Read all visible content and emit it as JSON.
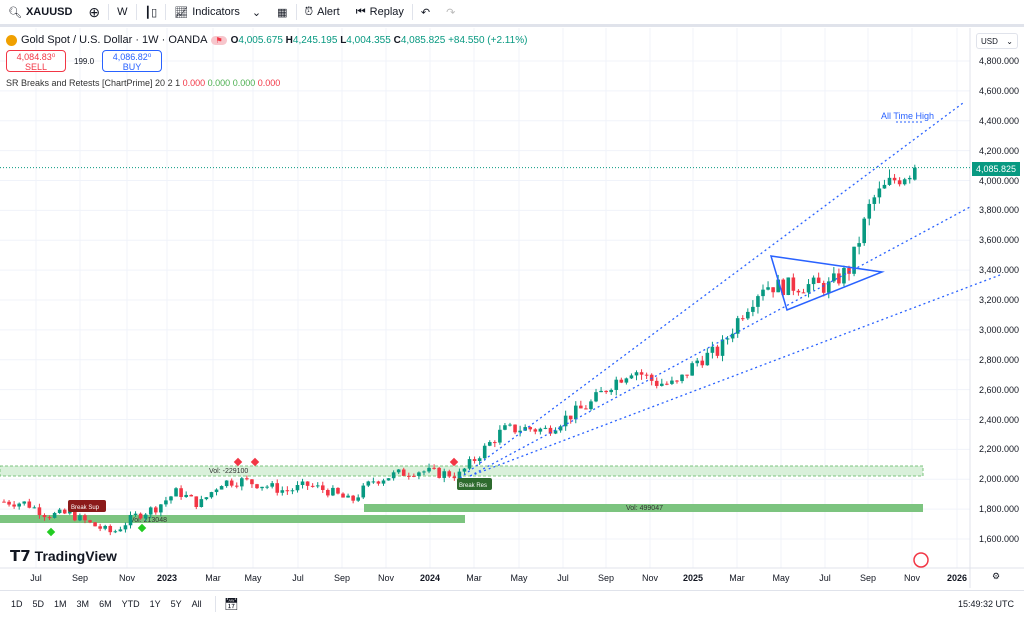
{
  "toolbar": {
    "symbol": "XAUUSD",
    "interval": "W",
    "indicators": "Indicators",
    "alert": "Alert",
    "replay": "Replay"
  },
  "legend": {
    "title": "Gold Spot / U.S. Dollar · 1W · OANDA",
    "o_label": "O",
    "o": "4,005.675",
    "h_label": "H",
    "h": "4,245.195",
    "l_label": "L",
    "l": "4,004.355",
    "c_label": "C",
    "c": "4,085.825",
    "change": "+84.550 (+2.11%)",
    "sell_price": "4,084.83⁰",
    "sell_label": "SELL",
    "spread": "199.0",
    "buy_price": "4,086.82⁰",
    "buy_label": "BUY",
    "indicator": "SR Breaks and Retests [ChartPrime] 20 2 1",
    "ind_vals": [
      "0.000",
      "0.000",
      "0.000",
      "0.000"
    ]
  },
  "currency": "USD",
  "last_price": "4,085.825",
  "annotations": {
    "ath": "All Time High",
    "vol1": "Vol: -229100",
    "vol2": "Vol: 213048",
    "vol3": "Vol: 499047",
    "break_sup": "Break Sup",
    "break_res": "Break Res"
  },
  "logo": "TradingView",
  "ranges": [
    "1D",
    "5D",
    "1M",
    "3M",
    "6M",
    "YTD",
    "1Y",
    "5Y",
    "All"
  ],
  "clock": "15:49:32 UTC",
  "colors": {
    "up": "#089981",
    "down": "#f23645",
    "accent": "#2962ff",
    "zone": "#7cc47f"
  },
  "chart_data": {
    "type": "candlestick",
    "y_ticks": [
      "4,800.000",
      "4,600.000",
      "4,400.000",
      "4,200.000",
      "4,000.000",
      "3,800.000",
      "3,600.000",
      "3,400.000",
      "3,200.000",
      "3,000.000",
      "2,800.000",
      "2,600.000",
      "2,400.000",
      "2,200.000",
      "2,000.000",
      "1,800.000",
      "1,600.000"
    ],
    "x_ticks": [
      "Jul",
      "Sep",
      "Nov",
      "2023",
      "Mar",
      "May",
      "Jul",
      "Sep",
      "Nov",
      "2024",
      "Mar",
      "May",
      "Jul",
      "Sep",
      "Nov",
      "2025",
      "Mar",
      "May",
      "Jul",
      "Sep",
      "Nov",
      "2026"
    ],
    "ylim": [
      1600,
      4800
    ],
    "monthly_closes": [
      1850,
      1840,
      1760,
      1770,
      1700,
      1640,
      1750,
      1810,
      1920,
      1830,
      1980,
      1990,
      1960,
      1920,
      1960,
      1920,
      1850,
      1990,
      2030,
      2060,
      2040,
      2030,
      2180,
      2330,
      2340,
      2330,
      2420,
      2500,
      2640,
      2740,
      2650,
      2630,
      2800,
      2860,
      3110,
      3300,
      3290,
      3300,
      3290,
      3410,
      3860,
      4000,
      4085.825
    ]
  }
}
